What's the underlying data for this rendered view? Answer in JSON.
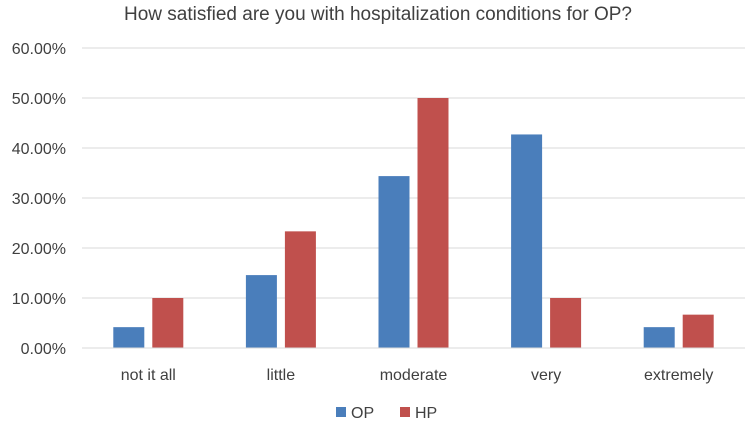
{
  "chart_data": {
    "type": "bar",
    "title": "How satisfied are you with hospitalization conditions for OP?",
    "categories": [
      "not it all",
      "little",
      "moderate",
      "very",
      "extremely"
    ],
    "series": [
      {
        "name": "OP",
        "color": "#4a7ebb",
        "values": [
          0.0417,
          0.1458,
          0.3438,
          0.4271,
          0.0417
        ]
      },
      {
        "name": "HP",
        "color": "#c0504d",
        "values": [
          0.1,
          0.2333,
          0.5,
          0.1,
          0.0667
        ]
      }
    ],
    "ylim": [
      0,
      0.6
    ],
    "yticks": [
      0,
      0.1,
      0.2,
      0.3,
      0.4,
      0.5,
      0.6
    ],
    "ytick_labels": [
      "0.00%",
      "10.00%",
      "20.00%",
      "30.00%",
      "40.00%",
      "50.00%",
      "60.00%"
    ],
    "xlabel": "",
    "ylabel": "",
    "grid": true,
    "legend_position": "bottom"
  }
}
